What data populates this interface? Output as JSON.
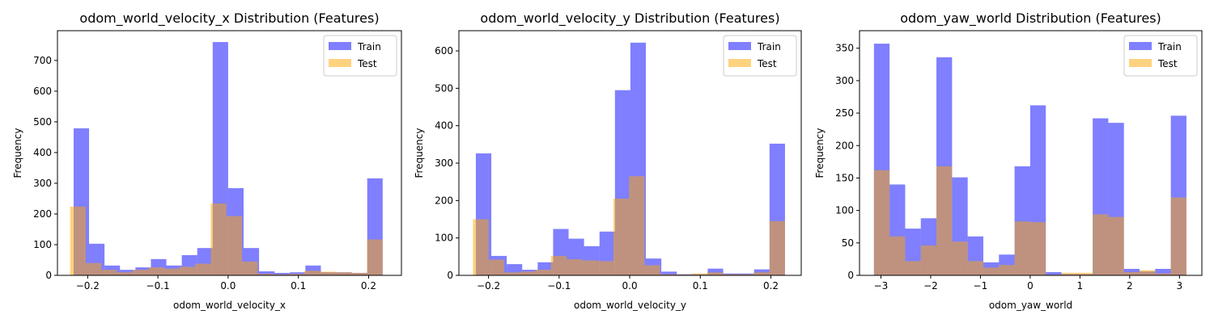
{
  "chart_data": [
    {
      "type": "histogram",
      "title": "odom_world_velocity_x Distribution (Features)",
      "xlabel": "odom_world_velocity_x",
      "ylabel": "Frequency",
      "xlim": [
        -0.243,
        0.2467
      ],
      "ylim": [
        0,
        797
      ],
      "xticks": [
        {
          "value": -0.2,
          "label": "−0.2"
        },
        {
          "value": -0.1,
          "label": "−0.1"
        },
        {
          "value": 0,
          "label": "0.0"
        },
        0.1,
        0.2
      ],
      "yticks": [
        0,
        100,
        200,
        300,
        400,
        500,
        600,
        700
      ],
      "legend": "upper right",
      "alpha": 0.5,
      "series": [
        {
          "name": "Train",
          "color": "#0000ff",
          "bins": [
            -0.22,
            -0.198,
            -0.176,
            -0.154,
            -0.132,
            -0.11,
            -0.088,
            -0.066,
            -0.044,
            -0.022,
            0,
            0.022,
            0.044,
            0.066,
            0.088,
            0.11,
            0.132,
            0.154,
            0.176,
            0.198,
            0.22
          ],
          "values": [
            479,
            103,
            32,
            18,
            26,
            53,
            32,
            66,
            89,
            760,
            284,
            89,
            13,
            8,
            10,
            32,
            10,
            10,
            8,
            316
          ]
        },
        {
          "name": "Test",
          "color": "#ffa500",
          "bins": [
            -0.225,
            -0.20275,
            -0.1805,
            -0.15825,
            -0.136,
            -0.11375,
            -0.0915,
            -0.06925,
            -0.047,
            -0.02475,
            -0.0025,
            0.01975,
            0.042,
            0.06425,
            0.0865,
            0.10875,
            0.131,
            0.15325,
            0.1755,
            0.19775,
            0.22
          ],
          "values": [
            224,
            40,
            18,
            10,
            18,
            26,
            22,
            28,
            38,
            234,
            193,
            45,
            5,
            3,
            5,
            15,
            12,
            10,
            8,
            117
          ]
        }
      ]
    },
    {
      "type": "histogram",
      "title": "odom_world_velocity_y Distribution (Features)",
      "xlabel": "odom_world_velocity_y",
      "ylabel": "Frequency",
      "xlim": [
        -0.242,
        0.243
      ],
      "ylim": [
        0,
        654
      ],
      "xticks": [
        {
          "value": -0.2,
          "label": "−0.2"
        },
        {
          "value": -0.1,
          "label": "−0.1"
        },
        {
          "value": 0,
          "label": "0.0"
        },
        0.1,
        0.2
      ],
      "yticks": [
        0,
        100,
        200,
        300,
        400,
        500,
        600
      ],
      "legend": "upper right",
      "alpha": 0.5,
      "series": [
        {
          "name": "Train",
          "color": "#0000ff",
          "bins": [
            -0.218,
            -0.1961,
            -0.1742,
            -0.1523,
            -0.1304,
            -0.1085,
            -0.0866,
            -0.0647,
            -0.0428,
            -0.0209,
            0.001,
            0.0229,
            0.0448,
            0.0667,
            0.0886,
            0.1105,
            0.1324,
            0.1543,
            0.1762,
            0.1981,
            0.22
          ],
          "values": [
            326,
            52,
            30,
            15,
            35,
            124,
            98,
            78,
            117,
            495,
            622,
            45,
            10,
            3,
            3,
            18,
            5,
            5,
            16,
            352
          ]
        },
        {
          "name": "Test",
          "color": "#ffa500",
          "bins": [
            -0.222,
            -0.1999,
            -0.1778,
            -0.1557,
            -0.1336,
            -0.1115,
            -0.0894,
            -0.0673,
            -0.0452,
            -0.0231,
            -0.001,
            0.0211,
            0.0432,
            0.0653,
            0.0874,
            0.1095,
            0.1316,
            0.1537,
            0.1758,
            0.1979,
            0.22
          ],
          "values": [
            150,
            42,
            8,
            10,
            15,
            52,
            43,
            40,
            38,
            205,
            265,
            27,
            3,
            2,
            5,
            8,
            3,
            3,
            8,
            145
          ]
        }
      ]
    },
    {
      "type": "histogram",
      "title": "odom_yaw_world Distribution (Features)",
      "xlabel": "odom_yaw_world",
      "ylabel": "Frequency",
      "xlim": [
        -3.43,
        3.45
      ],
      "ylim": [
        0,
        377
      ],
      "xticks": [
        {
          "value": -3,
          "label": "−3"
        },
        {
          "value": -2,
          "label": "−2"
        },
        {
          "value": -1,
          "label": "−1"
        },
        0,
        1,
        2,
        3
      ],
      "yticks": [
        0,
        50,
        100,
        150,
        200,
        250,
        300,
        350
      ],
      "legend": "upper right",
      "alpha": 0.5,
      "series": [
        {
          "name": "Train",
          "color": "#0000ff",
          "bins": [
            -3.14,
            -2.826,
            -2.512,
            -2.198,
            -1.884,
            -1.57,
            -1.256,
            -0.942,
            -0.628,
            -0.314,
            0,
            0.314,
            0.628,
            0.942,
            1.256,
            1.57,
            1.884,
            2.198,
            2.512,
            2.826,
            3.14
          ],
          "values": [
            357,
            140,
            72,
            88,
            336,
            151,
            60,
            20,
            32,
            168,
            262,
            5,
            2,
            2,
            242,
            235,
            10,
            6,
            10,
            246
          ]
        },
        {
          "name": "Test",
          "color": "#ffa500",
          "bins": [
            -3.14,
            -2.826,
            -2.512,
            -2.198,
            -1.884,
            -1.57,
            -1.256,
            -0.942,
            -0.628,
            -0.314,
            0,
            0.314,
            0.628,
            0.942,
            1.256,
            1.57,
            1.884,
            2.198,
            2.512,
            2.826,
            3.14
          ],
          "values": [
            162,
            60,
            22,
            46,
            168,
            52,
            22,
            12,
            16,
            83,
            82,
            1,
            4,
            4,
            94,
            90,
            5,
            8,
            3,
            120
          ]
        }
      ]
    }
  ]
}
